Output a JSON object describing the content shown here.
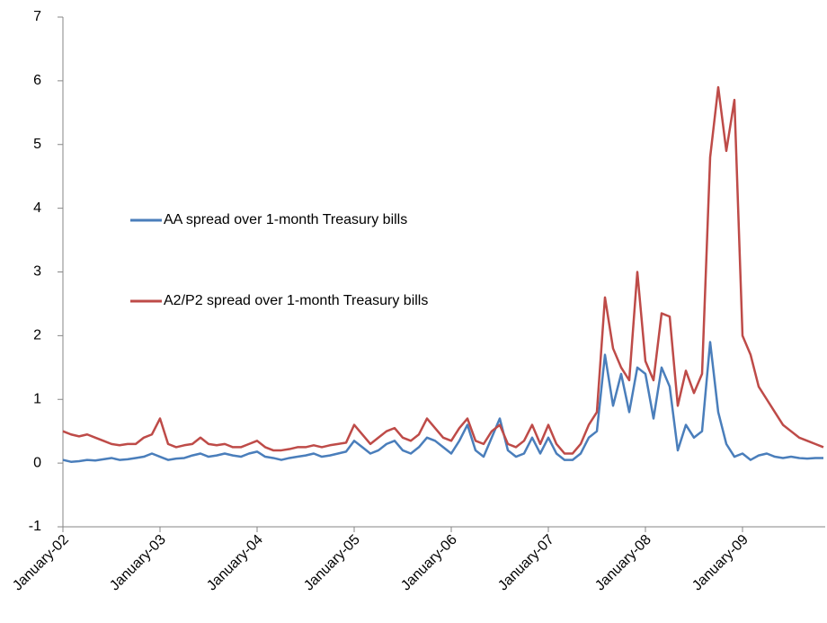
{
  "chart_data": {
    "type": "line",
    "categories": [
      "January-02",
      null,
      null,
      null,
      null,
      null,
      null,
      null,
      null,
      null,
      null,
      null,
      "January-03",
      null,
      null,
      null,
      null,
      null,
      null,
      null,
      null,
      null,
      null,
      null,
      "January-04",
      null,
      null,
      null,
      null,
      null,
      null,
      null,
      null,
      null,
      null,
      null,
      "January-05",
      null,
      null,
      null,
      null,
      null,
      null,
      null,
      null,
      null,
      null,
      null,
      "January-06",
      null,
      null,
      null,
      null,
      null,
      null,
      null,
      null,
      null,
      null,
      null,
      "January-07",
      null,
      null,
      null,
      null,
      null,
      null,
      null,
      null,
      null,
      null,
      null,
      "January-08",
      null,
      null,
      null,
      null,
      null,
      null,
      null,
      null,
      null,
      null,
      null,
      "January-09",
      null,
      null,
      null,
      null,
      null,
      null,
      null,
      null,
      null,
      null
    ],
    "series": [
      {
        "name": "AA spread over 1-month Treasury bills",
        "color": "#4a7ebb",
        "values": [
          0.05,
          0.02,
          0.03,
          0.05,
          0.04,
          0.06,
          0.08,
          0.05,
          0.06,
          0.08,
          0.1,
          0.15,
          0.1,
          0.05,
          0.07,
          0.08,
          0.12,
          0.15,
          0.1,
          0.12,
          0.15,
          0.12,
          0.1,
          0.15,
          0.18,
          0.1,
          0.08,
          0.05,
          0.08,
          0.1,
          0.12,
          0.15,
          0.1,
          0.12,
          0.15,
          0.18,
          0.35,
          0.25,
          0.15,
          0.2,
          0.3,
          0.35,
          0.2,
          0.15,
          0.25,
          0.4,
          0.35,
          0.25,
          0.15,
          0.35,
          0.6,
          0.2,
          0.1,
          0.4,
          0.7,
          0.2,
          0.1,
          0.15,
          0.4,
          0.15,
          0.4,
          0.15,
          0.05,
          0.05,
          0.15,
          0.4,
          0.5,
          1.7,
          0.9,
          1.4,
          0.8,
          1.5,
          1.4,
          0.7,
          1.5,
          1.2,
          0.2,
          0.6,
          0.4,
          0.5,
          1.9,
          0.8,
          0.3,
          0.1,
          0.15,
          0.05,
          0.12,
          0.15,
          0.1,
          0.08,
          0.1,
          0.08,
          0.07,
          0.08,
          0.08
        ]
      },
      {
        "name": "A2/P2 spread over 1-month Treasury bills",
        "color": "#be4b48",
        "values": [
          0.5,
          0.45,
          0.42,
          0.45,
          0.4,
          0.35,
          0.3,
          0.28,
          0.3,
          0.3,
          0.4,
          0.45,
          0.7,
          0.3,
          0.25,
          0.28,
          0.3,
          0.4,
          0.3,
          0.28,
          0.3,
          0.25,
          0.25,
          0.3,
          0.35,
          0.25,
          0.2,
          0.2,
          0.22,
          0.25,
          0.25,
          0.28,
          0.25,
          0.28,
          0.3,
          0.32,
          0.6,
          0.45,
          0.3,
          0.4,
          0.5,
          0.55,
          0.4,
          0.35,
          0.45,
          0.7,
          0.55,
          0.4,
          0.35,
          0.55,
          0.7,
          0.35,
          0.3,
          0.5,
          0.6,
          0.3,
          0.25,
          0.35,
          0.6,
          0.3,
          0.6,
          0.3,
          0.15,
          0.15,
          0.3,
          0.6,
          0.8,
          2.6,
          1.8,
          1.5,
          1.3,
          3.0,
          1.6,
          1.3,
          2.35,
          2.3,
          0.9,
          1.45,
          1.1,
          1.4,
          4.8,
          5.9,
          4.9,
          5.7,
          2.0,
          1.7,
          1.2,
          1.0,
          0.8,
          0.6,
          0.5,
          0.4,
          0.35,
          0.3,
          0.25
        ]
      }
    ],
    "ylim": [
      -1,
      7
    ],
    "yticks": [
      -1,
      0,
      1,
      2,
      3,
      4,
      5,
      6,
      7
    ]
  }
}
